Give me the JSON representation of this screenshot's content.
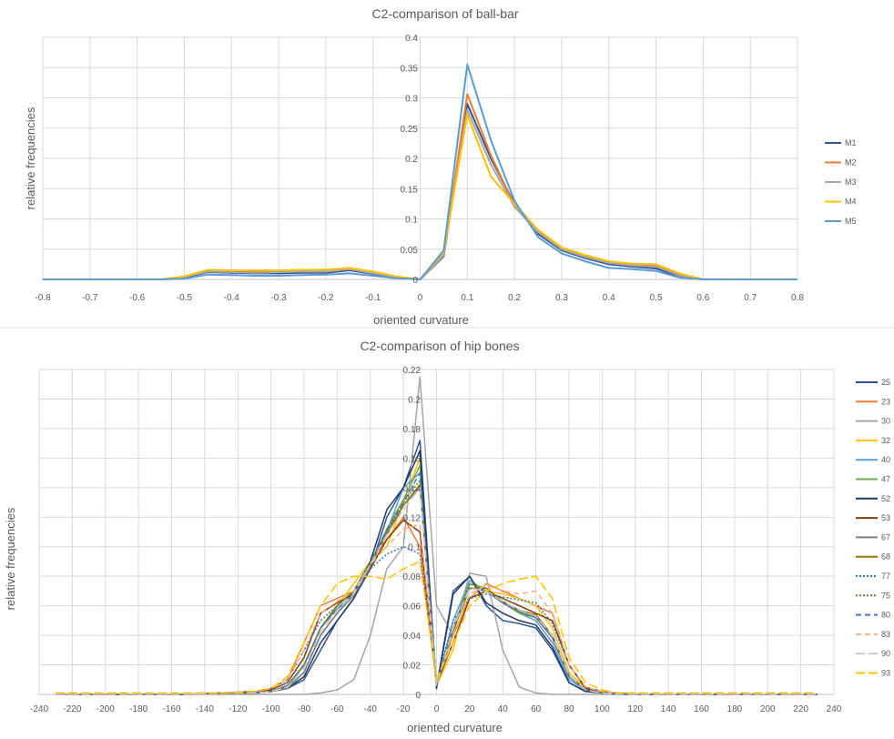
{
  "charts": [
    {
      "type": "line",
      "title": "C2-comparison of ball-bar",
      "xlabel": "oriented curvature",
      "ylabel": "relative frequencies",
      "xlim": [
        -0.8,
        0.8
      ],
      "ylim": [
        0,
        0.4
      ],
      "xticks": [
        "-0.8",
        "-0.7",
        "-0.6",
        "-0.5",
        "-0.4",
        "-0.3",
        "-0.2",
        "-0.1",
        "0",
        "0.1",
        "0.2",
        "0.3",
        "0.4",
        "0.5",
        "0.6",
        "0.7",
        "0.8"
      ],
      "yticks": [
        "0",
        "0.05",
        "0.1",
        "0.15",
        "0.2",
        "0.25",
        "0.3",
        "0.35",
        "0.4"
      ],
      "x": [
        -0.8,
        -0.75,
        -0.7,
        -0.65,
        -0.6,
        -0.55,
        -0.5,
        -0.45,
        -0.4,
        -0.35,
        -0.3,
        -0.25,
        -0.2,
        -0.15,
        -0.1,
        -0.05,
        0,
        0.05,
        0.1,
        0.15,
        0.2,
        0.25,
        0.3,
        0.35,
        0.4,
        0.45,
        0.5,
        0.55,
        0.6,
        0.65,
        0.7,
        0.75,
        0.8
      ],
      "legend_position": "right",
      "grid": true,
      "series": [
        {
          "name": "M1",
          "color": "#2F5597",
          "values": [
            0,
            0,
            0,
            0,
            0,
            0,
            0.003,
            0.012,
            0.011,
            0.01,
            0.01,
            0.011,
            0.011,
            0.015,
            0.009,
            0.003,
            0,
            0.038,
            0.29,
            0.2,
            0.125,
            0.075,
            0.048,
            0.035,
            0.025,
            0.021,
            0.018,
            0.005,
            0,
            0,
            0,
            0,
            0
          ]
        },
        {
          "name": "M2",
          "color": "#ED7D31",
          "values": [
            0,
            0,
            0,
            0,
            0,
            0,
            0.004,
            0.014,
            0.013,
            0.012,
            0.012,
            0.013,
            0.013,
            0.017,
            0.011,
            0.004,
            0,
            0.04,
            0.306,
            0.205,
            0.122,
            0.08,
            0.052,
            0.038,
            0.029,
            0.024,
            0.022,
            0.008,
            0,
            0,
            0,
            0,
            0
          ]
        },
        {
          "name": "M3",
          "color": "#A5A5A5",
          "values": [
            0,
            0,
            0,
            0,
            0,
            0,
            0.004,
            0.013,
            0.012,
            0.011,
            0.012,
            0.013,
            0.013,
            0.017,
            0.01,
            0.004,
            0,
            0.04,
            0.28,
            0.19,
            0.12,
            0.078,
            0.05,
            0.037,
            0.027,
            0.023,
            0.021,
            0.006,
            0,
            0,
            0,
            0,
            0
          ]
        },
        {
          "name": "M4",
          "color": "#FFC000",
          "values": [
            0,
            0,
            0,
            0,
            0,
            0,
            0.005,
            0.016,
            0.015,
            0.015,
            0.015,
            0.016,
            0.016,
            0.019,
            0.013,
            0.005,
            0,
            0.045,
            0.272,
            0.17,
            0.125,
            0.082,
            0.053,
            0.04,
            0.03,
            0.026,
            0.025,
            0.01,
            0,
            0,
            0,
            0,
            0
          ]
        },
        {
          "name": "M5",
          "color": "#5B9BD5",
          "values": [
            0,
            0,
            0,
            0,
            0,
            0,
            0.001,
            0.008,
            0.007,
            0.006,
            0.006,
            0.007,
            0.008,
            0.01,
            0.006,
            0.002,
            0,
            0.048,
            0.355,
            0.23,
            0.13,
            0.07,
            0.043,
            0.03,
            0.019,
            0.017,
            0.014,
            0.003,
            0,
            0,
            0,
            0,
            0
          ]
        }
      ]
    },
    {
      "type": "line",
      "title": "C2-comparison of hip bones",
      "xlabel": "oriented curvature",
      "ylabel": "relative frequencies",
      "xlim": [
        -240,
        240
      ],
      "ylim": [
        0,
        0.22
      ],
      "xticks": [
        "-240",
        "-220",
        "-200",
        "-180",
        "-160",
        "-140",
        "-120",
        "-100",
        "-80",
        "-60",
        "-40",
        "-20",
        "0",
        "20",
        "40",
        "60",
        "80",
        "100",
        "120",
        "140",
        "160",
        "180",
        "200",
        "220",
        "240"
      ],
      "yticks": [
        "0",
        "0.02",
        "0.04",
        "0.06",
        "0.08",
        "0.1",
        "0.12",
        "0.14",
        "0.16",
        "0.18",
        "0.2",
        "0.22"
      ],
      "x": [
        -230,
        -210,
        -190,
        -170,
        -150,
        -130,
        -110,
        -100,
        -90,
        -80,
        -70,
        -60,
        -50,
        -40,
        -30,
        -20,
        -10,
        0,
        10,
        20,
        30,
        40,
        50,
        60,
        70,
        80,
        90,
        100,
        110,
        130,
        150,
        170,
        190,
        210,
        230
      ],
      "legend_position": "right",
      "grid": true,
      "series": [
        {
          "name": "25",
          "color": "#2F5597",
          "dash": "",
          "values": [
            0,
            0,
            0,
            0,
            0,
            0.001,
            0.001,
            0.002,
            0.004,
            0.01,
            0.03,
            0.05,
            0.065,
            0.085,
            0.12,
            0.14,
            0.172,
            0.005,
            0.07,
            0.08,
            0.06,
            0.05,
            0.048,
            0.045,
            0.03,
            0.008,
            0.002,
            0.001,
            0,
            0,
            0,
            0,
            0,
            0,
            0
          ]
        },
        {
          "name": "23",
          "color": "#ED7D31",
          "dash": "",
          "values": [
            0,
            0,
            0,
            0,
            0,
            0.001,
            0.002,
            0.004,
            0.01,
            0.035,
            0.06,
            0.065,
            0.07,
            0.09,
            0.105,
            0.12,
            0.1,
            0.008,
            0.04,
            0.065,
            0.075,
            0.07,
            0.065,
            0.06,
            0.055,
            0.02,
            0.005,
            0.002,
            0.001,
            0,
            0,
            0,
            0,
            0,
            0
          ]
        },
        {
          "name": "30",
          "color": "#A5A5A5",
          "dash": "",
          "values": [
            0,
            0,
            0,
            0,
            0,
            0,
            0,
            0,
            0,
            0,
            0.001,
            0.003,
            0.01,
            0.04,
            0.085,
            0.1,
            0.215,
            0.06,
            0.04,
            0.082,
            0.08,
            0.03,
            0.005,
            0.001,
            0,
            0,
            0,
            0,
            0,
            0,
            0,
            0,
            0,
            0,
            0
          ]
        },
        {
          "name": "32",
          "color": "#FFC000",
          "dash": "",
          "values": [
            0,
            0,
            0,
            0,
            0,
            0.001,
            0.001,
            0.002,
            0.005,
            0.02,
            0.045,
            0.06,
            0.075,
            0.09,
            0.1,
            0.13,
            0.16,
            0.006,
            0.03,
            0.075,
            0.07,
            0.068,
            0.065,
            0.06,
            0.045,
            0.015,
            0.004,
            0.001,
            0,
            0,
            0,
            0,
            0,
            0,
            0
          ]
        },
        {
          "name": "40",
          "color": "#5B9BD5",
          "dash": "",
          "values": [
            0,
            0,
            0,
            0,
            0,
            0.001,
            0.001,
            0.002,
            0.005,
            0.015,
            0.04,
            0.055,
            0.07,
            0.09,
            0.11,
            0.14,
            0.15,
            0.005,
            0.05,
            0.077,
            0.07,
            0.062,
            0.055,
            0.05,
            0.035,
            0.01,
            0.003,
            0.001,
            0,
            0,
            0,
            0,
            0,
            0,
            0
          ]
        },
        {
          "name": "47",
          "color": "#70AD47",
          "dash": "",
          "values": [
            0,
            0,
            0,
            0,
            0,
            0.001,
            0.001,
            0.002,
            0.006,
            0.02,
            0.045,
            0.058,
            0.068,
            0.088,
            0.112,
            0.132,
            0.155,
            0.006,
            0.045,
            0.075,
            0.072,
            0.062,
            0.055,
            0.052,
            0.04,
            0.012,
            0.003,
            0.001,
            0,
            0,
            0,
            0,
            0,
            0,
            0
          ]
        },
        {
          "name": "52",
          "color": "#1F3864",
          "dash": "",
          "values": [
            0,
            0,
            0,
            0,
            0,
            0.001,
            0.001,
            0.002,
            0.004,
            0.012,
            0.035,
            0.05,
            0.065,
            0.09,
            0.125,
            0.14,
            0.165,
            0.004,
            0.068,
            0.08,
            0.062,
            0.055,
            0.05,
            0.047,
            0.032,
            0.008,
            0.002,
            0.001,
            0,
            0,
            0,
            0,
            0,
            0,
            0
          ]
        },
        {
          "name": "53",
          "color": "#843C0C",
          "dash": "",
          "values": [
            0,
            0,
            0,
            0,
            0,
            0.001,
            0.002,
            0.003,
            0.008,
            0.025,
            0.055,
            0.062,
            0.068,
            0.085,
            0.105,
            0.118,
            0.11,
            0.007,
            0.035,
            0.065,
            0.07,
            0.065,
            0.06,
            0.055,
            0.05,
            0.02,
            0.004,
            0.001,
            0,
            0,
            0,
            0,
            0,
            0,
            0
          ]
        },
        {
          "name": "67",
          "color": "#7F7F7F",
          "dash": "",
          "values": [
            0,
            0,
            0,
            0,
            0,
            0.001,
            0.001,
            0.002,
            0.004,
            0.015,
            0.04,
            0.055,
            0.067,
            0.087,
            0.11,
            0.128,
            0.14,
            0.006,
            0.045,
            0.072,
            0.07,
            0.062,
            0.056,
            0.052,
            0.038,
            0.012,
            0.003,
            0.001,
            0,
            0,
            0,
            0,
            0,
            0,
            0
          ]
        },
        {
          "name": "68",
          "color": "#997300",
          "dash": "",
          "values": [
            0,
            0,
            0,
            0,
            0,
            0.001,
            0.001,
            0.002,
            0.006,
            0.02,
            0.045,
            0.06,
            0.07,
            0.088,
            0.108,
            0.128,
            0.142,
            0.006,
            0.043,
            0.072,
            0.072,
            0.063,
            0.057,
            0.054,
            0.04,
            0.013,
            0.003,
            0.001,
            0,
            0,
            0,
            0,
            0,
            0,
            0
          ]
        },
        {
          "name": "77",
          "color": "#2E75B6",
          "dash": "2,2",
          "values": [
            0,
            0,
            0,
            0,
            0,
            0.001,
            0.002,
            0.004,
            0.01,
            0.03,
            0.05,
            0.06,
            0.07,
            0.085,
            0.095,
            0.1,
            0.095,
            0.008,
            0.05,
            0.065,
            0.068,
            0.066,
            0.064,
            0.062,
            0.048,
            0.02,
            0.005,
            0.002,
            0,
            0,
            0,
            0,
            0,
            0,
            0
          ]
        },
        {
          "name": "75",
          "color": "#548235",
          "dash": "2,2",
          "values": [
            0,
            0,
            0,
            0,
            0,
            0.001,
            0.001,
            0.002,
            0.006,
            0.02,
            0.045,
            0.06,
            0.07,
            0.09,
            0.11,
            0.13,
            0.145,
            0.006,
            0.045,
            0.075,
            0.07,
            0.062,
            0.056,
            0.052,
            0.04,
            0.012,
            0.003,
            0.001,
            0,
            0,
            0,
            0,
            0,
            0,
            0
          ]
        },
        {
          "name": "80",
          "color": "#4472C4",
          "dash": "6,4",
          "values": [
            0,
            0,
            0,
            0,
            0,
            0.001,
            0.001,
            0.002,
            0.006,
            0.02,
            0.045,
            0.058,
            0.068,
            0.088,
            0.112,
            0.13,
            0.15,
            0.006,
            0.045,
            0.072,
            0.07,
            0.062,
            0.056,
            0.052,
            0.04,
            0.012,
            0.003,
            0.001,
            0,
            0,
            0,
            0,
            0,
            0,
            0
          ]
        },
        {
          "name": "83",
          "color": "#F4B183",
          "dash": "6,4",
          "values": [
            0,
            0,
            0,
            0,
            0,
            0.001,
            0.002,
            0.004,
            0.01,
            0.03,
            0.055,
            0.063,
            0.07,
            0.088,
            0.1,
            0.112,
            0.115,
            0.008,
            0.04,
            0.068,
            0.074,
            0.07,
            0.068,
            0.07,
            0.055,
            0.02,
            0.005,
            0.002,
            0.001,
            0,
            0,
            0,
            0,
            0,
            0
          ]
        },
        {
          "name": "90",
          "color": "#C9C9C9",
          "dash": "10,4",
          "values": [
            0,
            0,
            0,
            0,
            0,
            0.001,
            0.001,
            0.002,
            0.005,
            0.018,
            0.042,
            0.057,
            0.068,
            0.088,
            0.108,
            0.125,
            0.14,
            0.006,
            0.045,
            0.072,
            0.07,
            0.063,
            0.057,
            0.053,
            0.04,
            0.013,
            0.003,
            0.001,
            0,
            0,
            0,
            0,
            0,
            0,
            0
          ]
        },
        {
          "name": "93",
          "color": "#FFC000",
          "dash": "10,4",
          "values": [
            0.001,
            0.001,
            0.001,
            0.001,
            0.001,
            0.001,
            0.002,
            0.004,
            0.012,
            0.035,
            0.06,
            0.075,
            0.08,
            0.08,
            0.078,
            0.085,
            0.09,
            0.01,
            0.035,
            0.06,
            0.07,
            0.075,
            0.078,
            0.08,
            0.065,
            0.025,
            0.008,
            0.003,
            0.001,
            0.001,
            0.001,
            0.001,
            0.001,
            0.001,
            0.001
          ]
        }
      ]
    }
  ]
}
